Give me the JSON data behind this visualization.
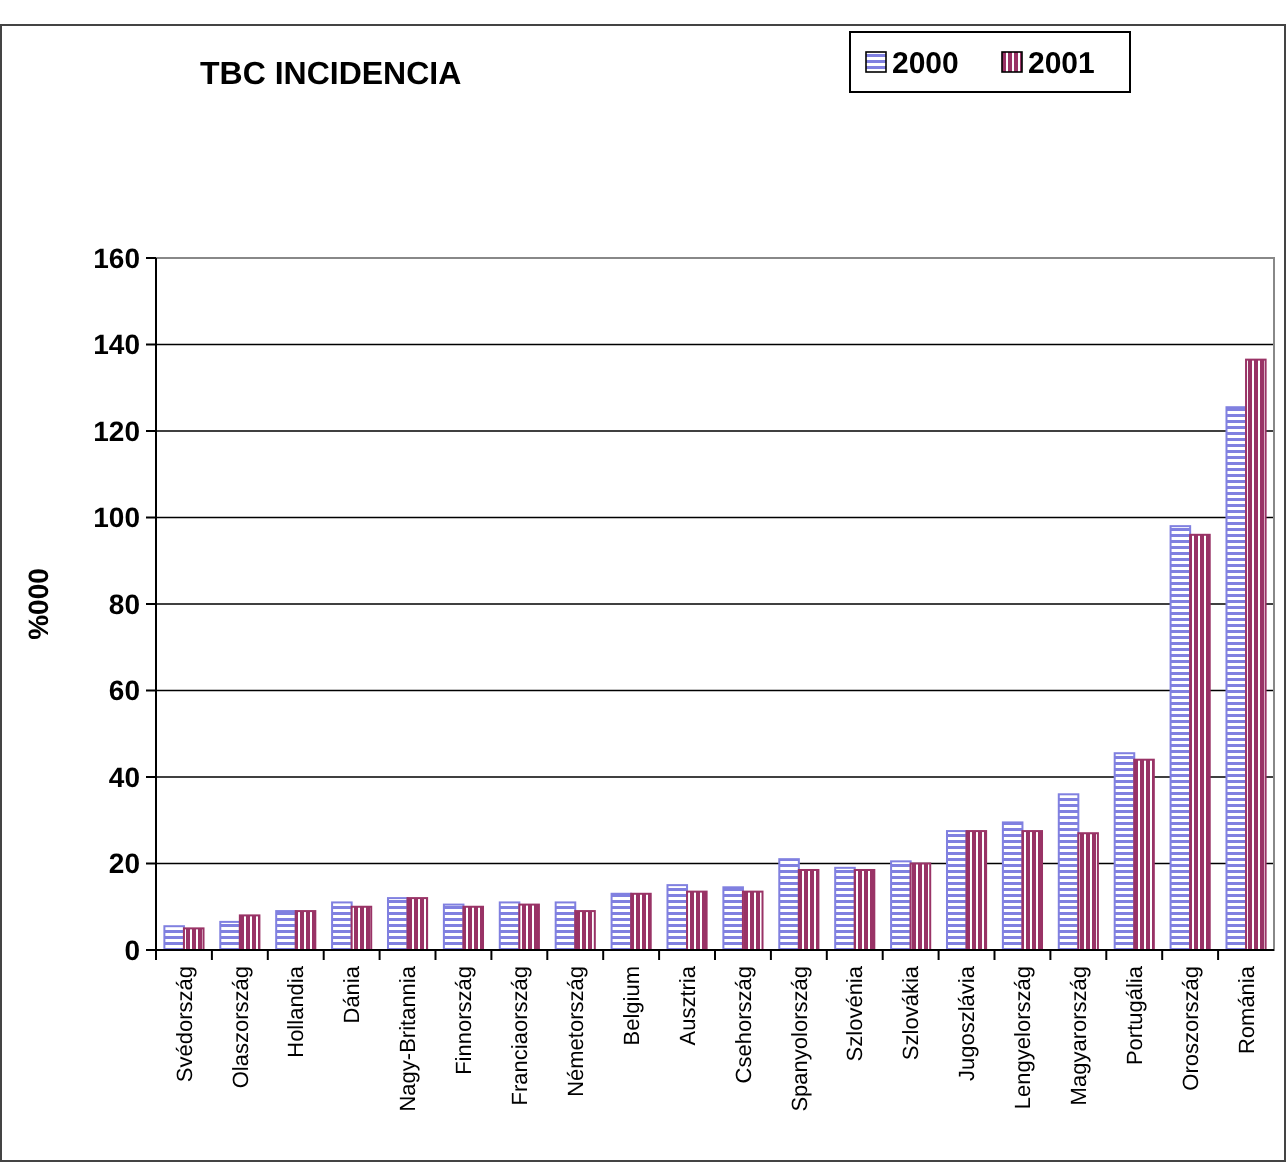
{
  "chart_data": {
    "type": "bar",
    "title": "TBC INCIDENCIA",
    "ylabel": "%000",
    "categories": [
      "Svédország",
      "Olaszország",
      "Hollandia",
      "Dánia",
      "Nagy-Britannia",
      "Finnország",
      "Franciaország",
      "Németország",
      "Belgium",
      "Ausztria",
      "Csehország",
      "Spanyolország",
      "Szlovénia",
      "Szlovákia",
      "Jugoszlávia",
      "Lengyelország",
      "Magyarország",
      "Portugália",
      "Oroszország",
      "Románia"
    ],
    "series": [
      {
        "name": "2000",
        "color": "#8080e0",
        "values": [
          5.5,
          6.5,
          9,
          11,
          12,
          10.5,
          11,
          11,
          13,
          15,
          14.5,
          21,
          19,
          20.5,
          27.5,
          29.5,
          36,
          45.5,
          98,
          125.5
        ]
      },
      {
        "name": "2001",
        "color": "#993366",
        "values": [
          5,
          8,
          9,
          10,
          12,
          10,
          10.5,
          9,
          13,
          13.5,
          13.5,
          18.5,
          18.5,
          20,
          27.5,
          27.5,
          27,
          44,
          96,
          136.5
        ]
      }
    ],
    "ylim": [
      0,
      160
    ],
    "yticks": [
      0,
      20,
      40,
      60,
      80,
      100,
      120,
      140,
      160
    ],
    "grid": "y",
    "legend": "top right"
  }
}
